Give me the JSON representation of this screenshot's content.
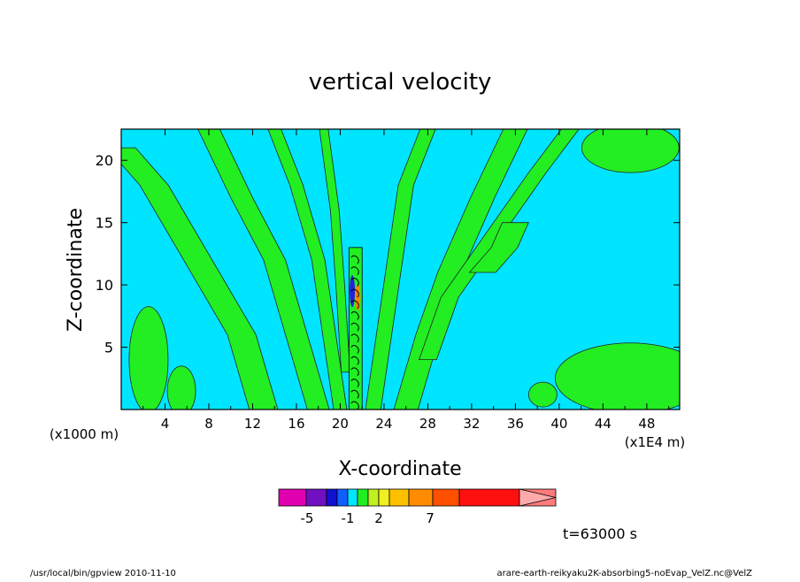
{
  "chart_data": {
    "type": "heatmap",
    "title": "vertical velocity",
    "xlabel": "X-coordinate",
    "ylabel": "Z-coordinate",
    "x_unit_label": "(x1E4 m)",
    "y_unit_label": "(x1000 m)",
    "x_ticks": [
      "4",
      "8",
      "12",
      "16",
      "20",
      "24",
      "28",
      "32",
      "36",
      "40",
      "44",
      "48"
    ],
    "y_ticks": [
      "5",
      "10",
      "15",
      "20"
    ],
    "xlim": [
      0,
      51
    ],
    "ylim": [
      0,
      22.5
    ],
    "fill_colors": {
      "background": "#00e5ff",
      "positive_band": "#22ee22",
      "strong_core": "#2222dd",
      "weak_core": "#ff8800"
    },
    "colorbar": {
      "colors": [
        "#e000b0",
        "#7010c0",
        "#1010d0",
        "#1060ff",
        "#00e5ff",
        "#20ee20",
        "#c0f020",
        "#f0f020",
        "#ffc000",
        "#ff8c00",
        "#ff5000",
        "#ff1010",
        "#ff7a7a",
        "#ffaaaa"
      ],
      "tick_labels": [
        {
          "label": "-5",
          "value": -5
        },
        {
          "label": "-1",
          "value": -1
        },
        {
          "label": "2",
          "value": 2
        },
        {
          "label": "7",
          "value": 7
        }
      ]
    },
    "time_label": "t=63000 s"
  },
  "footer": {
    "left": "/usr/local/bin/gpview  2010-11-10",
    "right": "arare-earth-reikyaku2K-absorbing5-noEvap_VelZ.nc@VelZ"
  }
}
